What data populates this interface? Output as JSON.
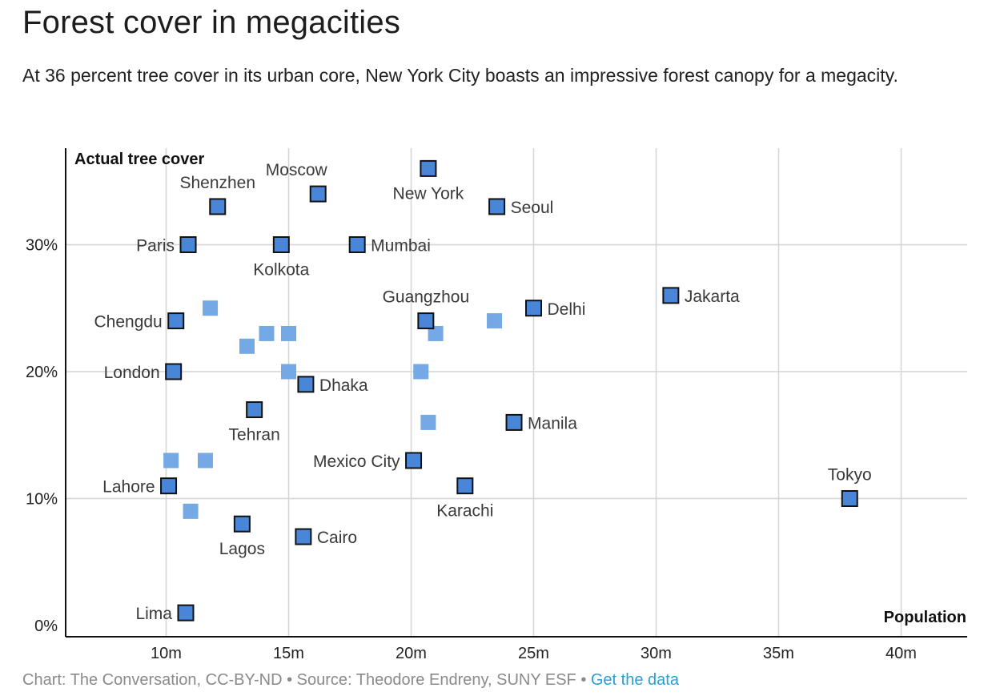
{
  "header": {
    "title": "Forest cover in megacities",
    "subtitle": "At 36 percent tree cover in its urban core, New York City boasts an impressive forest canopy for a megacity."
  },
  "footer": {
    "credit": "Chart: The Conversation, CC-BY-ND • Source: Theodore Endreny, SUNY ESF • ",
    "link_label": "Get the data"
  },
  "colors": {
    "labeled_point": "#4a86d8",
    "unlabeled_point": "#74a9e6",
    "grid": "#d4d4d4",
    "link": "#2a9fd6"
  },
  "chart_data": {
    "type": "scatter",
    "ylabel": "Actual tree cover",
    "xlabel": "Population",
    "xlim": [
      6,
      43
    ],
    "ylim": [
      0,
      38
    ],
    "x_ticks": [
      10,
      15,
      20,
      25,
      30,
      35,
      40
    ],
    "x_tick_labels": [
      "10m",
      "15m",
      "20m",
      "25m",
      "30m",
      "35m",
      "40m"
    ],
    "y_ticks": [
      0,
      10,
      20,
      30
    ],
    "y_tick_labels": [
      "0%",
      "10%",
      "20%",
      "30%"
    ],
    "grid": true,
    "points": [
      {
        "name": "New York",
        "x": 20.7,
        "y": 36
      },
      {
        "name": "Moscow",
        "x": 16.2,
        "y": 34
      },
      {
        "name": "Shenzhen",
        "x": 12.1,
        "y": 33
      },
      {
        "name": "Seoul",
        "x": 23.5,
        "y": 33
      },
      {
        "name": "Paris",
        "x": 10.9,
        "y": 30
      },
      {
        "name": "Kolkota",
        "x": 14.7,
        "y": 30
      },
      {
        "name": "Mumbai",
        "x": 17.8,
        "y": 30
      },
      {
        "name": "Jakarta",
        "x": 30.6,
        "y": 26
      },
      {
        "name": "Delhi",
        "x": 25.0,
        "y": 25
      },
      {
        "name": "Guangzhou",
        "x": 20.6,
        "y": 24
      },
      {
        "name": "Chengdu",
        "x": 10.4,
        "y": 24
      },
      {
        "name": "London",
        "x": 10.3,
        "y": 20
      },
      {
        "name": "Dhaka",
        "x": 15.7,
        "y": 19
      },
      {
        "name": "Tehran",
        "x": 13.6,
        "y": 17
      },
      {
        "name": "Manila",
        "x": 24.2,
        "y": 16
      },
      {
        "name": "Mexico City",
        "x": 20.1,
        "y": 13
      },
      {
        "name": "Lahore",
        "x": 10.1,
        "y": 11
      },
      {
        "name": "Karachi",
        "x": 22.2,
        "y": 11
      },
      {
        "name": "Tokyo",
        "x": 37.9,
        "y": 10
      },
      {
        "name": "Lagos",
        "x": 13.1,
        "y": 8
      },
      {
        "name": "Cairo",
        "x": 15.6,
        "y": 7
      },
      {
        "name": "Lima",
        "x": 10.8,
        "y": 1
      }
    ],
    "unlabeled_points": [
      {
        "x": 11.8,
        "y": 25
      },
      {
        "x": 14.1,
        "y": 23
      },
      {
        "x": 15.0,
        "y": 23
      },
      {
        "x": 13.3,
        "y": 22
      },
      {
        "x": 21.0,
        "y": 23
      },
      {
        "x": 23.4,
        "y": 24
      },
      {
        "x": 15.0,
        "y": 20
      },
      {
        "x": 20.4,
        "y": 20
      },
      {
        "x": 20.7,
        "y": 16
      },
      {
        "x": 10.2,
        "y": 13
      },
      {
        "x": 11.6,
        "y": 13
      },
      {
        "x": 11.0,
        "y": 9
      }
    ]
  }
}
